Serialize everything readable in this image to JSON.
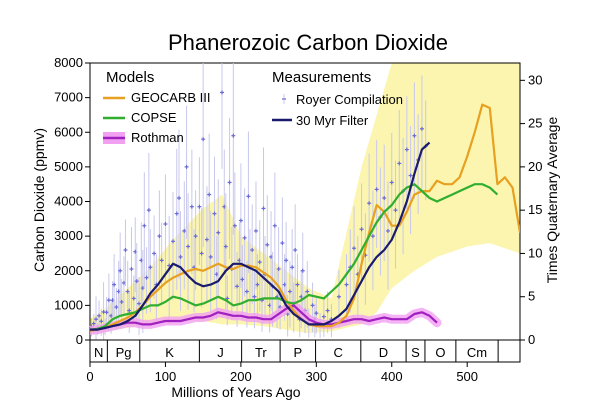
{
  "chart_data": {
    "type": "line",
    "title": "Phanerozoic Carbon Dioxide",
    "xlabel": "Millions of Years Ago",
    "ylabel": "Carbon Dioxide (ppmv)",
    "y2label": "Times Quaternary Average",
    "xlim": [
      0,
      570
    ],
    "ylim": [
      0,
      8000
    ],
    "y2lim": [
      0,
      32
    ],
    "x_ticks": [
      0,
      100,
      200,
      300,
      400,
      500
    ],
    "y_ticks": [
      0,
      1000,
      2000,
      3000,
      4000,
      5000,
      6000,
      7000,
      8000
    ],
    "y2_ticks": [
      0,
      5,
      10,
      15,
      20,
      25,
      30
    ],
    "legend": {
      "models_heading": "Models",
      "measurements_heading": "Measurements"
    },
    "colors": {
      "geocarb": "#e8a020",
      "copse": "#2fae2f",
      "rothman": "#a020c0",
      "rothman_band": "#f2a0f2",
      "royer": "#6a6ad8",
      "filter": "#1a1a6e",
      "uncertainty": "#fbf5b0"
    },
    "periods": [
      {
        "label": "N",
        "start": 0,
        "end": 23
      },
      {
        "label": "Pg",
        "start": 23,
        "end": 66
      },
      {
        "label": "K",
        "start": 66,
        "end": 145
      },
      {
        "label": "J",
        "start": 145,
        "end": 201
      },
      {
        "label": "Tr",
        "start": 201,
        "end": 252
      },
      {
        "label": "P",
        "start": 252,
        "end": 299
      },
      {
        "label": "C",
        "start": 299,
        "end": 359
      },
      {
        "label": "D",
        "start": 359,
        "end": 419
      },
      {
        "label": "S",
        "start": 419,
        "end": 444
      },
      {
        "label": "O",
        "start": 444,
        "end": 485
      },
      {
        "label": "Cm",
        "start": 485,
        "end": 541
      }
    ],
    "uncertainty_band": {
      "x": [
        0,
        20,
        50,
        80,
        110,
        150,
        175,
        200,
        230,
        260,
        290,
        320,
        360,
        380,
        400,
        430,
        460,
        500,
        530,
        570
      ],
      "upper": [
        600,
        900,
        1500,
        2100,
        2900,
        3800,
        4200,
        3000,
        2500,
        2000,
        1500,
        1200,
        5000,
        6500,
        8000,
        8000,
        8000,
        8000,
        8000,
        8000
      ],
      "lower": [
        200,
        250,
        350,
        450,
        550,
        550,
        450,
        450,
        400,
        300,
        200,
        250,
        450,
        800,
        1500,
        2000,
        2400,
        2700,
        2800,
        2500
      ]
    },
    "series": [
      {
        "name": "GEOCARB III",
        "key": "geocarb",
        "x": [
          0,
          10,
          20,
          30,
          40,
          50,
          60,
          70,
          80,
          90,
          100,
          110,
          120,
          130,
          140,
          150,
          160,
          170,
          180,
          190,
          200,
          210,
          220,
          230,
          240,
          250,
          260,
          270,
          280,
          290,
          300,
          310,
          320,
          330,
          340,
          350,
          360,
          370,
          380,
          390,
          400,
          410,
          420,
          430,
          440,
          450,
          460,
          470,
          480,
          490,
          500,
          510,
          520,
          530,
          540,
          550,
          560,
          570
        ],
        "y": [
          270,
          300,
          350,
          450,
          550,
          650,
          800,
          1000,
          1250,
          1450,
          1650,
          1800,
          1900,
          2000,
          2050,
          2000,
          2100,
          2200,
          2100,
          2050,
          2150,
          2150,
          2100,
          1950,
          1800,
          1550,
          1150,
          850,
          600,
          450,
          400,
          400,
          400,
          500,
          700,
          1200,
          2200,
          3100,
          3900,
          3700,
          3300,
          3300,
          3700,
          4200,
          4300,
          4300,
          4600,
          4500,
          4500,
          4700,
          5300,
          6000,
          6800,
          6700,
          4500,
          4700,
          4400,
          3100
        ]
      },
      {
        "name": "COPSE",
        "key": "copse",
        "x": [
          0,
          10,
          20,
          30,
          40,
          50,
          60,
          70,
          80,
          90,
          100,
          110,
          120,
          130,
          140,
          150,
          160,
          170,
          180,
          190,
          200,
          210,
          220,
          230,
          240,
          250,
          260,
          270,
          280,
          290,
          300,
          310,
          320,
          330,
          340,
          350,
          360,
          370,
          380,
          390,
          400,
          410,
          420,
          430,
          440,
          450,
          460,
          470,
          480,
          490,
          500,
          510,
          520,
          530,
          540
        ],
        "y": [
          300,
          320,
          400,
          600,
          700,
          750,
          800,
          900,
          1000,
          1000,
          1100,
          1250,
          1200,
          1100,
          1000,
          1050,
          1150,
          1250,
          1150,
          1000,
          1050,
          1150,
          1150,
          1200,
          1200,
          1200,
          1100,
          1050,
          1150,
          1300,
          1250,
          1200,
          1400,
          1600,
          1900,
          2200,
          2600,
          3000,
          3400,
          3700,
          3900,
          4200,
          4400,
          4500,
          4300,
          4100,
          4000,
          4100,
          4200,
          4300,
          4400,
          4500,
          4500,
          4400,
          4200
        ]
      },
      {
        "name": "Rothman",
        "key": "rothman",
        "x": [
          0,
          10,
          20,
          30,
          40,
          50,
          60,
          70,
          80,
          90,
          100,
          110,
          120,
          130,
          140,
          150,
          160,
          170,
          180,
          190,
          200,
          210,
          220,
          230,
          240,
          250,
          260,
          270,
          280,
          290,
          300,
          310,
          320,
          330,
          340,
          350,
          360,
          370,
          380,
          390,
          400,
          410,
          420,
          430,
          440,
          450,
          460
        ],
        "y": [
          280,
          300,
          350,
          400,
          450,
          500,
          500,
          450,
          450,
          500,
          550,
          550,
          550,
          600,
          650,
          650,
          700,
          800,
          750,
          700,
          700,
          650,
          650,
          600,
          600,
          750,
          900,
          1000,
          800,
          600,
          500,
          450,
          450,
          500,
          550,
          600,
          600,
          550,
          600,
          650,
          600,
          600,
          600,
          750,
          800,
          700,
          500
        ]
      },
      {
        "name": "30 Myr Filter",
        "key": "filter",
        "x": [
          0,
          10,
          20,
          30,
          40,
          50,
          60,
          70,
          80,
          90,
          100,
          110,
          120,
          130,
          140,
          150,
          160,
          170,
          180,
          190,
          200,
          210,
          220,
          230,
          240,
          250,
          260,
          270,
          280,
          290,
          300,
          310,
          320,
          330,
          340,
          350,
          360,
          370,
          380,
          390,
          400,
          410,
          420,
          430,
          440,
          450
        ],
        "y": [
          300,
          300,
          350,
          400,
          450,
          550,
          700,
          1000,
          1350,
          1600,
          1900,
          2200,
          2100,
          1850,
          1650,
          1550,
          1600,
          1700,
          2000,
          2200,
          2200,
          2100,
          2000,
          1800,
          1600,
          1400,
          1000,
          750,
          600,
          450,
          450,
          450,
          550,
          700,
          900,
          1300,
          1700,
          2100,
          2400,
          2600,
          2900,
          3400,
          4000,
          4800,
          5500,
          5700
        ]
      }
    ],
    "scatter": {
      "name": "Royer Compilation",
      "key": "royer",
      "points": [
        [
          2,
          280,
          500
        ],
        [
          5,
          350,
          600
        ],
        [
          8,
          300,
          900
        ],
        [
          10,
          260,
          400
        ],
        [
          12,
          500,
          900
        ],
        [
          15,
          380,
          700
        ],
        [
          18,
          420,
          1200
        ],
        [
          20,
          300,
          500
        ],
        [
          22,
          600,
          1000
        ],
        [
          25,
          800,
          1500
        ],
        [
          28,
          500,
          900
        ],
        [
          30,
          900,
          1400
        ],
        [
          32,
          1200,
          2000
        ],
        [
          35,
          700,
          1200
        ],
        [
          38,
          1000,
          1800
        ],
        [
          40,
          1500,
          2500
        ],
        [
          42,
          800,
          1400
        ],
        [
          45,
          1300,
          2000
        ],
        [
          47,
          2200,
          3000
        ],
        [
          50,
          1000,
          1800
        ],
        [
          52,
          600,
          1100
        ],
        [
          55,
          1500,
          2600
        ],
        [
          58,
          900,
          1500
        ],
        [
          60,
          2100,
          3000
        ],
        [
          62,
          1200,
          2200
        ],
        [
          65,
          700,
          1400
        ],
        [
          68,
          1800,
          2800
        ],
        [
          70,
          1000,
          2000
        ],
        [
          72,
          2600,
          4000
        ],
        [
          75,
          1400,
          2200
        ],
        [
          78,
          3000,
          4500
        ],
        [
          80,
          1600,
          2600
        ],
        [
          85,
          2000,
          3000
        ],
        [
          88,
          1200,
          2000
        ],
        [
          92,
          2400,
          3600
        ],
        [
          95,
          1800,
          2800
        ],
        [
          100,
          2700,
          4000
        ],
        [
          105,
          1500,
          2800
        ],
        [
          110,
          2200,
          3500
        ],
        [
          115,
          2800,
          4500
        ],
        [
          118,
          3200,
          5000
        ],
        [
          120,
          1800,
          3000
        ],
        [
          125,
          2500,
          3800
        ],
        [
          128,
          4200,
          5800
        ],
        [
          130,
          2000,
          3400
        ],
        [
          135,
          3100,
          4600
        ],
        [
          138,
          1600,
          2600
        ],
        [
          140,
          2400,
          3600
        ],
        [
          145,
          3200,
          4500
        ],
        [
          148,
          1900,
          3100
        ],
        [
          150,
          4600,
          7000
        ],
        [
          155,
          2200,
          3600
        ],
        [
          158,
          3400,
          5000
        ],
        [
          160,
          1800,
          3000
        ],
        [
          165,
          2900,
          4400
        ],
        [
          168,
          1400,
          2400
        ],
        [
          170,
          2400,
          3800
        ],
        [
          175,
          6300,
          8000
        ],
        [
          178,
          3100,
          4600
        ],
        [
          180,
          2000,
          3400
        ],
        [
          182,
          900,
          1500
        ],
        [
          185,
          3700,
          5400
        ],
        [
          188,
          1500,
          2600
        ],
        [
          190,
          4800,
          7000
        ],
        [
          192,
          2600,
          4000
        ],
        [
          195,
          1100,
          2000
        ],
        [
          198,
          1800,
          2800
        ],
        [
          200,
          2700,
          4200
        ],
        [
          202,
          1300,
          2200
        ],
        [
          205,
          2300,
          3600
        ],
        [
          208,
          1000,
          1800
        ],
        [
          210,
          3300,
          5000
        ],
        [
          212,
          1600,
          2600
        ],
        [
          215,
          2000,
          3200
        ],
        [
          218,
          900,
          1600
        ],
        [
          220,
          2500,
          3800
        ],
        [
          222,
          1200,
          2000
        ],
        [
          225,
          1700,
          2800
        ],
        [
          228,
          800,
          1500
        ],
        [
          230,
          3000,
          4600
        ],
        [
          232,
          1400,
          2400
        ],
        [
          235,
          2100,
          3400
        ],
        [
          238,
          700,
          1300
        ],
        [
          240,
          1800,
          3000
        ],
        [
          242,
          1100,
          2000
        ],
        [
          245,
          2600,
          4000
        ],
        [
          248,
          900,
          1600
        ],
        [
          250,
          1500,
          2600
        ],
        [
          252,
          700,
          1200
        ],
        [
          255,
          2200,
          3400
        ],
        [
          258,
          1200,
          2000
        ],
        [
          260,
          1800,
          2800
        ],
        [
          262,
          500,
          1000
        ],
        [
          265,
          1000,
          1800
        ],
        [
          268,
          1600,
          2600
        ],
        [
          270,
          700,
          1300
        ],
        [
          272,
          2000,
          3200
        ],
        [
          275,
          1200,
          2000
        ],
        [
          278,
          400,
          800
        ],
        [
          280,
          900,
          1600
        ],
        [
          282,
          1500,
          2500
        ],
        [
          285,
          600,
          1100
        ],
        [
          288,
          1000,
          1800
        ],
        [
          290,
          350,
          700
        ],
        [
          295,
          700,
          1300
        ],
        [
          298,
          400,
          800
        ],
        [
          300,
          550,
          1000
        ],
        [
          305,
          300,
          600
        ],
        [
          310,
          450,
          900
        ],
        [
          315,
          600,
          1100
        ],
        [
          320,
          400,
          800
        ],
        [
          330,
          900,
          1600
        ],
        [
          340,
          1200,
          2000
        ],
        [
          345,
          1600,
          2600
        ],
        [
          350,
          2100,
          3200
        ],
        [
          355,
          1400,
          2400
        ],
        [
          360,
          2600,
          3800
        ],
        [
          365,
          1900,
          3000
        ],
        [
          370,
          3300,
          4600
        ],
        [
          375,
          2400,
          3600
        ],
        [
          380,
          3700,
          5000
        ],
        [
          385,
          2900,
          4200
        ],
        [
          390,
          3400,
          4800
        ],
        [
          395,
          2500,
          3800
        ],
        [
          400,
          3900,
          5200
        ],
        [
          405,
          3100,
          4400
        ],
        [
          410,
          4400,
          5800
        ],
        [
          415,
          3600,
          5000
        ],
        [
          420,
          4800,
          6200
        ],
        [
          425,
          4100,
          5400
        ],
        [
          430,
          5200,
          6600
        ],
        [
          435,
          4600,
          5800
        ],
        [
          440,
          5400,
          6800
        ],
        [
          445,
          5000,
          6200
        ]
      ]
    }
  }
}
